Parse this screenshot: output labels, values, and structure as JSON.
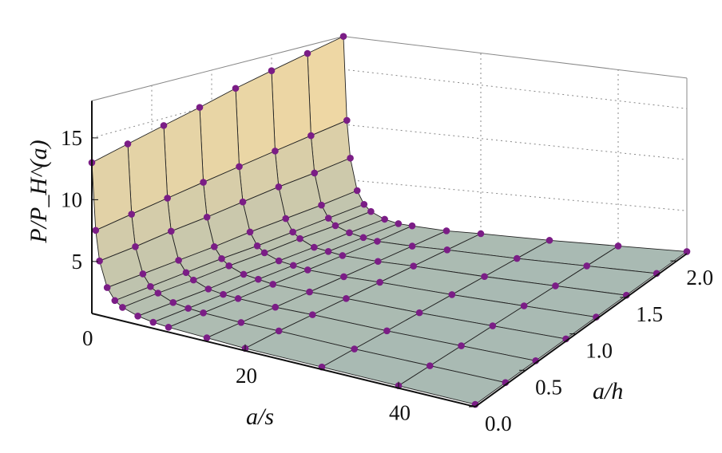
{
  "chart_data": {
    "type": "surface3d",
    "title": "",
    "xlabel": "a/s",
    "ylabel": "a/h",
    "zlabel": "P/P_H^(a)",
    "zlabel_parts": {
      "main": "P/P",
      "sub": "H",
      "sup": "(a)"
    },
    "xlim": [
      0,
      50
    ],
    "ylim": [
      0,
      2.1
    ],
    "zlim": [
      0.8,
      18
    ],
    "xticks": [
      "0",
      "20",
      "40"
    ],
    "xtick_values": [
      0,
      20,
      40
    ],
    "yticks": [
      "0.0",
      "0.5",
      "1.0",
      "1.5",
      "2.0"
    ],
    "ytick_values": [
      0,
      0.5,
      1.0,
      1.5,
      2.0
    ],
    "zticks": [
      "5",
      "10",
      "15"
    ],
    "ztick_values": [
      5,
      10,
      15
    ],
    "grid": true,
    "a_s": [
      0,
      0.5,
      1,
      2,
      3,
      4,
      6,
      8,
      10,
      15,
      20,
      30,
      40,
      50
    ],
    "a_h": [
      0,
      0.3,
      0.6,
      0.9,
      1.2,
      1.5,
      1.8,
      2.1
    ],
    "z": [
      [
        13.0,
        7.6,
        5.2,
        3.2,
        2.3,
        1.9,
        1.5,
        1.3,
        1.2,
        1.1,
        1.0,
        1.0,
        1.0,
        1.0
      ],
      [
        13.7,
        8.0,
        5.4,
        3.3,
        2.4,
        2.0,
        1.5,
        1.3,
        1.2,
        1.1,
        1.1,
        1.0,
        1.0,
        1.0
      ],
      [
        14.4,
        8.4,
        5.7,
        3.4,
        2.5,
        2.0,
        1.5,
        1.3,
        1.2,
        1.1,
        1.1,
        1.0,
        1.0,
        1.0
      ],
      [
        15.1,
        8.8,
        5.9,
        3.5,
        2.6,
        2.1,
        1.6,
        1.4,
        1.2,
        1.1,
        1.1,
        1.0,
        1.0,
        1.0
      ],
      [
        15.9,
        9.2,
        6.2,
        3.7,
        2.6,
        2.1,
        1.6,
        1.4,
        1.2,
        1.1,
        1.1,
        1.0,
        1.0,
        1.0
      ],
      [
        16.6,
        9.6,
        6.5,
        3.8,
        2.7,
        2.2,
        1.6,
        1.4,
        1.2,
        1.1,
        1.1,
        1.0,
        1.0,
        1.0
      ],
      [
        17.3,
        10.0,
        6.7,
        3.9,
        2.8,
        2.2,
        1.7,
        1.4,
        1.2,
        1.1,
        1.1,
        1.0,
        1.0,
        1.0
      ],
      [
        18.0,
        10.4,
        7.0,
        4.1,
        2.9,
        2.3,
        1.7,
        1.4,
        1.3,
        1.1,
        1.1,
        1.0,
        1.0,
        1.0
      ]
    ],
    "series": [
      {
        "name": "surface",
        "style": "surface"
      },
      {
        "name": "points",
        "style": "markers",
        "color": "#7b1d86"
      }
    ],
    "colors": {
      "low": "#a9bab3",
      "high": "#f7dba2",
      "marker": "#7b1d86",
      "mesh": "#222222"
    }
  }
}
